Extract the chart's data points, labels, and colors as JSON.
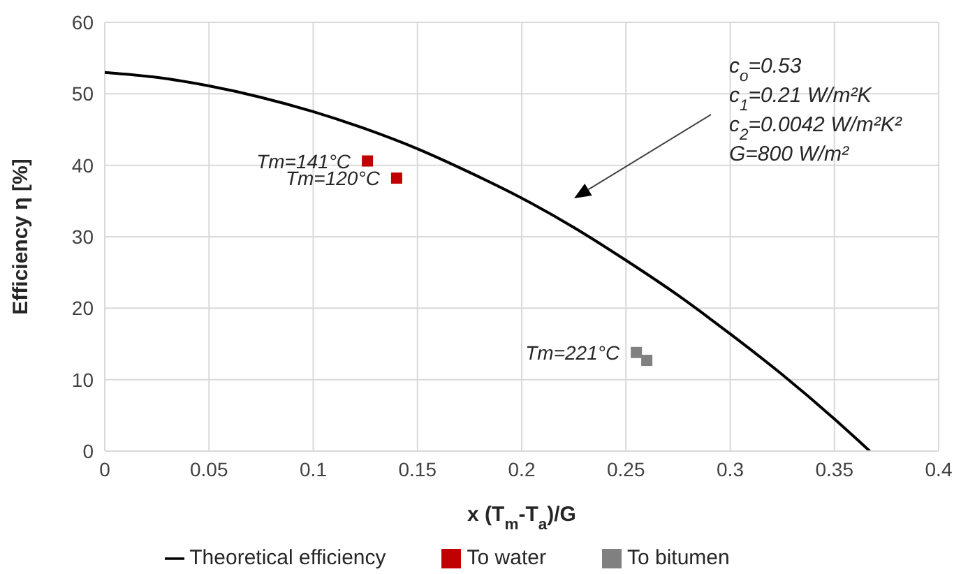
{
  "chart_data": {
    "type": "line",
    "xlabel": "x (T$_{m}$-T$_{a}$)/G",
    "ylabel": "Efficiency η [%]",
    "xlim": [
      0,
      0.4
    ],
    "xticks": [
      0,
      0.05,
      0.1,
      0.15,
      0.2,
      0.25,
      0.3,
      0.35,
      0.4
    ],
    "ylim": [
      0,
      60
    ],
    "yticks": [
      0,
      10,
      20,
      30,
      40,
      50,
      60
    ],
    "grid": true,
    "legend": "bottom",
    "series": [
      {
        "name": "Theoretical efficiency",
        "color": "#000000",
        "marker": "none",
        "x": [
          0,
          0.025,
          0.05,
          0.075,
          0.1,
          0.125,
          0.15,
          0.175,
          0.2,
          0.225,
          0.25,
          0.275,
          0.3,
          0.325,
          0.35,
          0.367
        ],
        "values": [
          53,
          52.3,
          51.1,
          49.5,
          47.5,
          45.1,
          42.3,
          39.0,
          35.4,
          31.3,
          26.7,
          21.8,
          16.4,
          10.7,
          4.5,
          0
        ]
      },
      {
        "name": "To water",
        "type": "scatter",
        "color": "#c00000",
        "marker": "square",
        "x": [
          0.126,
          0.14
        ],
        "values": [
          40.6,
          38.2
        ]
      },
      {
        "name": "To bitumen",
        "type": "scatter",
        "color": "#808080",
        "marker": "square",
        "x": [
          0.255,
          0.26
        ],
        "values": [
          13.8,
          12.7
        ]
      }
    ],
    "annotations": [
      {
        "text": "Tm=141°C",
        "x": 0.126,
        "y": 40.6
      },
      {
        "text": "Tm=120°C",
        "x": 0.14,
        "y": 38.2
      },
      {
        "text": "Tm=221°C",
        "x": 0.255,
        "y": 13.8
      },
      "c$_{o}$=0.53",
      "c$_{1}$=0.21 W/m²K",
      "c$_{2}$=0.0042 W/m²K²",
      "G=800 W/m²"
    ]
  }
}
